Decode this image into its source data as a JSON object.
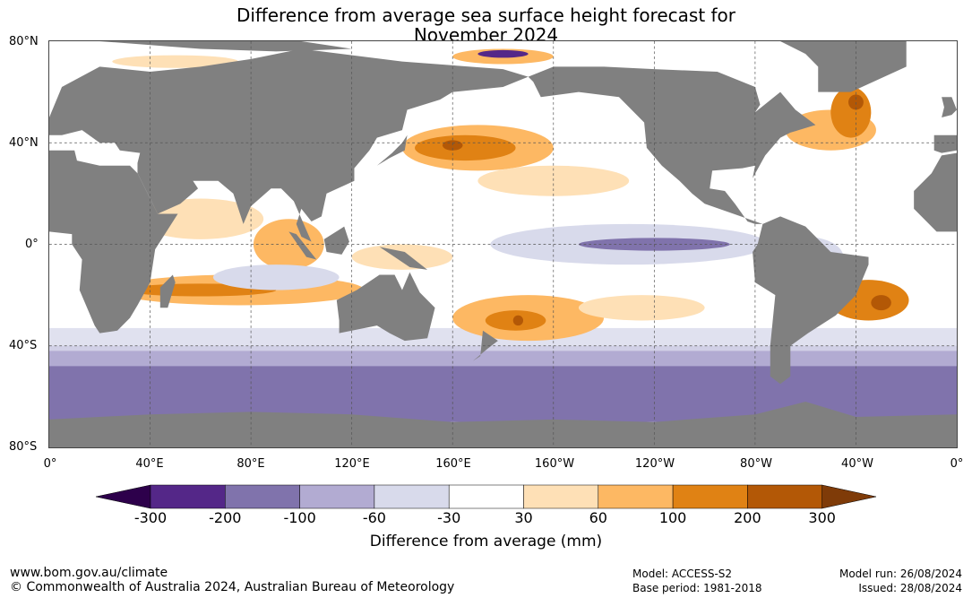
{
  "title": {
    "line1": "Difference from average sea surface height forecast for",
    "line2": "November 2024"
  },
  "lat_labels": [
    "80°N",
    "40°N",
    "0°",
    "40°S",
    "80°S"
  ],
  "lon_labels": [
    "0°",
    "40°E",
    "80°E",
    "120°E",
    "160°E",
    "160°W",
    "120°W",
    "80°W",
    "40°W",
    "0°"
  ],
  "colorbar": {
    "labels": [
      "-300",
      "-200",
      "-100",
      "-60",
      "-30",
      "30",
      "60",
      "100",
      "200",
      "300"
    ],
    "colors": [
      "#2d004b",
      "#542788",
      "#8073ac",
      "#b2abd2",
      "#d8daeb",
      "#ffffff",
      "#fee0b6",
      "#fdb863",
      "#e08214",
      "#b35806",
      "#7f3b08"
    ],
    "title": "Difference from average (mm)"
  },
  "colors": {
    "land": "#808080"
  },
  "footer": {
    "url": "www.bom.gov.au/climate",
    "copyright": "© Commonwealth of Australia 2024, Australian Bureau of Meteorology",
    "model": "Model: ACCESS-S2",
    "base_period": "Base period: 1981-2018",
    "model_run": "Model run: 26/08/2024",
    "issued": "Issued: 28/08/2024"
  }
}
